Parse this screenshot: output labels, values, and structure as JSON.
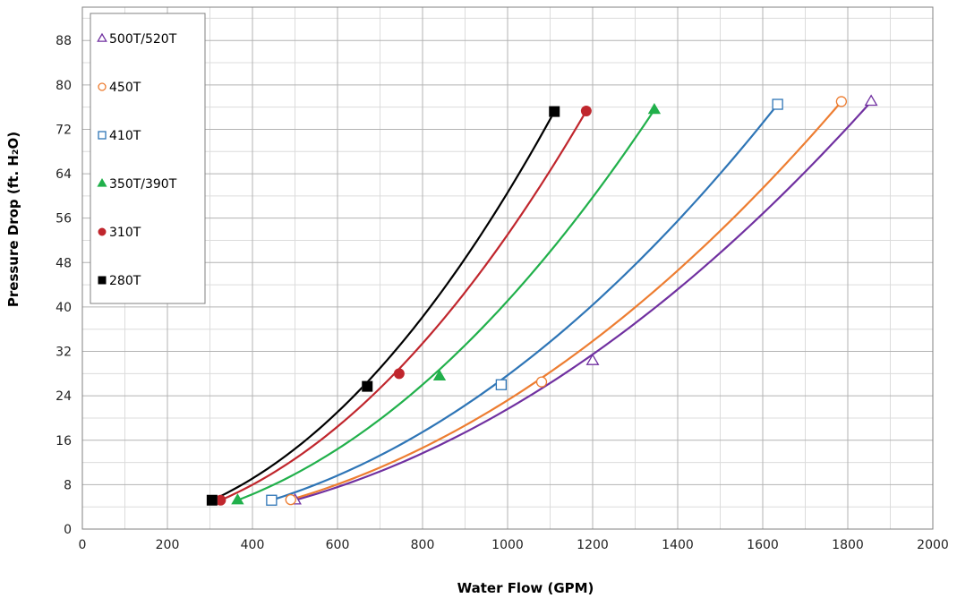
{
  "chart_data": {
    "type": "line",
    "xlabel": "Water Flow (GPM)",
    "ylabel": "Pressure Drop (ft. H₂O)",
    "xlim": [
      0,
      2000
    ],
    "ylim": [
      0,
      94
    ],
    "x_ticks": [
      0,
      200,
      400,
      600,
      800,
      1000,
      1200,
      1400,
      1600,
      1800,
      2000
    ],
    "y_ticks": [
      0,
      8,
      16,
      24,
      32,
      40,
      48,
      56,
      64,
      72,
      80,
      88
    ],
    "x_ticks_text": [
      "0",
      "200",
      "400",
      "600",
      "800",
      "1000",
      "1200",
      "1400",
      "1600",
      "1800",
      "2000"
    ],
    "y_ticks_text": [
      "0",
      "8",
      "16",
      "24",
      "32",
      "40",
      "48",
      "56",
      "64",
      "72",
      "80",
      "88"
    ],
    "grid": true,
    "legend_position": "top-left",
    "series": [
      {
        "name": "500T/520T",
        "color": "#7030a0",
        "marker": "triangle-open",
        "points": [
          [
            500,
            5.2
          ],
          [
            1200,
            30.3
          ],
          [
            1855,
            77.0
          ]
        ]
      },
      {
        "name": "450T",
        "color": "#ed7d31",
        "marker": "circle-open",
        "points": [
          [
            490,
            5.3
          ],
          [
            1080,
            26.5
          ],
          [
            1785,
            77.0
          ]
        ]
      },
      {
        "name": "410T",
        "color": "#2e75b6",
        "marker": "square-open",
        "points": [
          [
            445,
            5.2
          ],
          [
            985,
            26.0
          ],
          [
            1635,
            76.5
          ]
        ]
      },
      {
        "name": "350T/390T",
        "color": "#21b04b",
        "marker": "triangle-filled",
        "points": [
          [
            365,
            5.2
          ],
          [
            840,
            27.5
          ],
          [
            1345,
            75.5
          ]
        ]
      },
      {
        "name": "310T",
        "color": "#c0262d",
        "marker": "circle-filled",
        "points": [
          [
            325,
            5.2
          ],
          [
            745,
            28.0
          ],
          [
            1185,
            75.3
          ]
        ]
      },
      {
        "name": "280T",
        "color": "#000000",
        "marker": "square-filled",
        "points": [
          [
            305,
            5.2
          ],
          [
            670,
            25.7
          ],
          [
            1110,
            75.2
          ]
        ]
      }
    ]
  }
}
